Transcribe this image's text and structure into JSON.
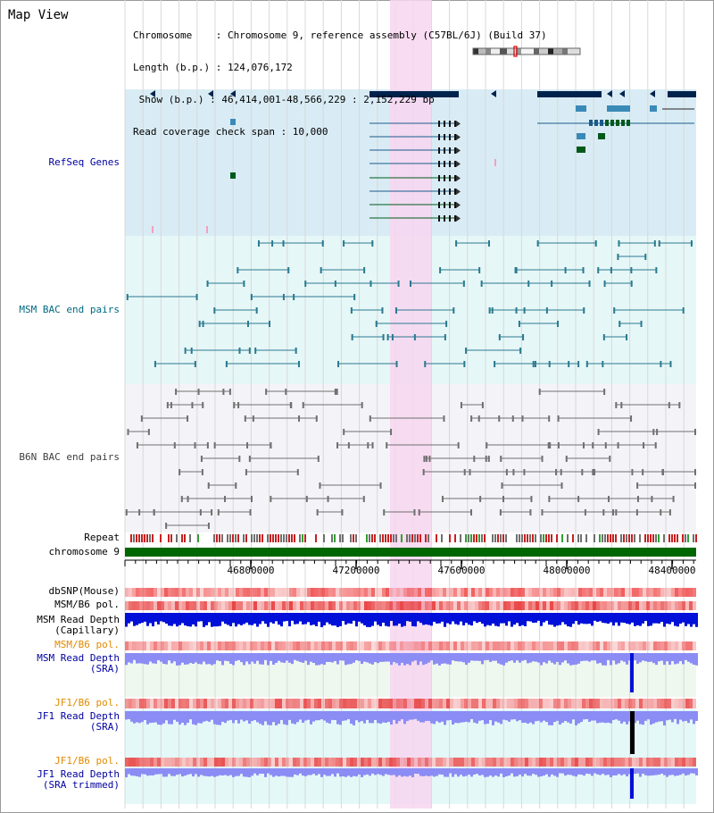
{
  "title": "Map View",
  "info_lines": [
    "Chromosome    : Chromosome 9, reference assembly (C57BL/6J) (Build 37)",
    "Length (b.p.) : 124,076,172",
    " Show (b.p.) : 46,414,001-48,566,229 : 2,152,229 bp",
    "Read coverage check span : 10,000"
  ],
  "tracks": {
    "refseq": "RefSeq Genes",
    "msm_bac": "MSM BAC end pairs",
    "b6n_bac": "B6N BAC end pairs",
    "repeat": "Repeat",
    "chromosome": "chromosome 9",
    "dbsnp": "dbSNP(Mouse)",
    "msm_b6_pol_1": "MSM/B6 pol.",
    "msm_read_depth_cap": "MSM Read Depth\n(Capillary)",
    "msm_b6_pol_2": "MSM/B6 pol.",
    "msm_read_depth_sra": "MSM Read Depth\n(SRA)",
    "jf1_b6_pol_1": "JF1/B6 pol.",
    "jf1_read_depth_sra": "JF1 Read Depth\n(SRA)",
    "jf1_b6_pol_2": "JF1/B6 pol.",
    "jf1_read_depth_trim": "JF1 Read Depth\n(SRA trimmed)"
  },
  "axis_ticks": [
    "46800000",
    "47200000",
    "47600000",
    "48000000",
    "48400000"
  ],
  "colors": {
    "refseq_bg": "#d9ecf5",
    "msm_bac_bg": "#e6f7f7",
    "b6n_bac_bg": "#f4f4f8",
    "highlight": "#f7d6f0",
    "gene_dark": "#00234d",
    "gene_green": "#005a1a",
    "depth_blue": "#0010d8",
    "depth_light": "#8c8cf5",
    "pol_red": "#e03030",
    "pol_orange": "#e08a00",
    "label_blue": "#0000a0"
  }
}
